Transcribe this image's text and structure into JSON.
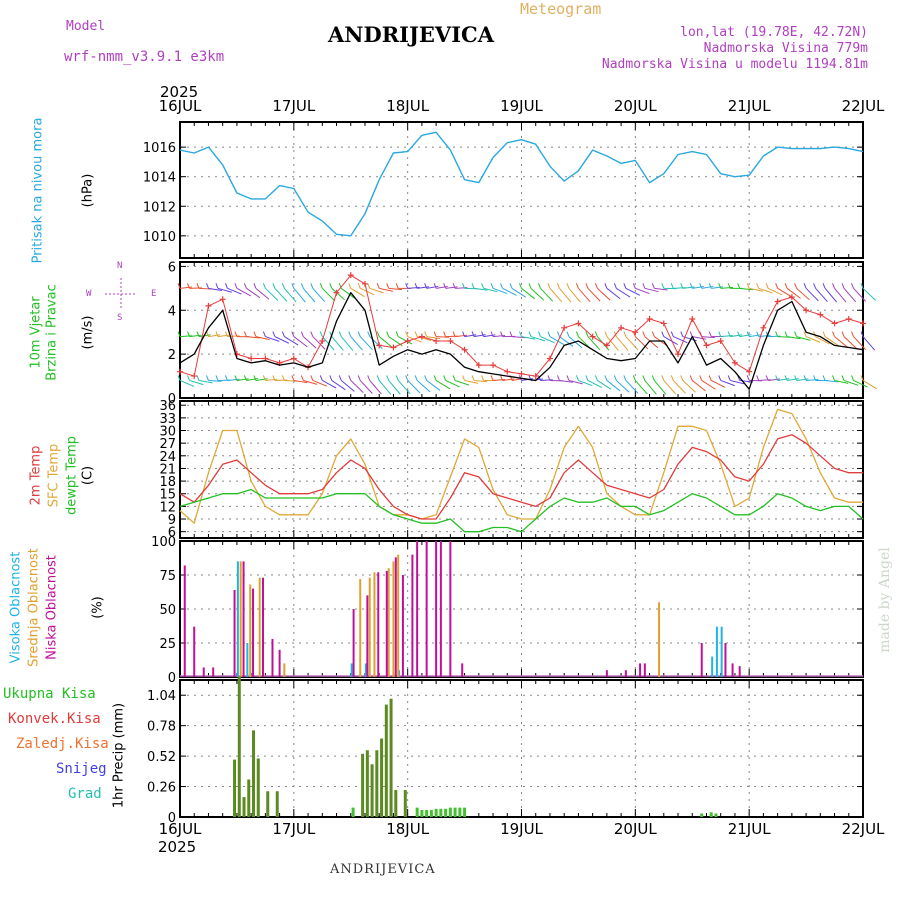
{
  "header": {
    "model_label": "Model",
    "model_name": "wrf-nmm_v3.9.1  e3km",
    "meteogram": "Meteogram",
    "station": "ANDRIJEVICA",
    "lonlat": "lon,lat (19.78E, 42.72N)",
    "elevation": "Nadmorska Visina 779m",
    "model_elevation": "Nadmorska Visina u modelu 1194.81m"
  },
  "footer": {
    "station": "ANDRIJEVICA",
    "credit": "made by Angel"
  },
  "time_axis": {
    "year": "2025",
    "ticks": [
      "16JUL",
      "17JUL",
      "18JUL",
      "19JUL",
      "20JUL",
      "21JUL",
      "22JUL"
    ]
  },
  "compass": {
    "n": "N",
    "s": "S",
    "e": "E",
    "w": "W"
  },
  "colors": {
    "pressure": "#29a8e0",
    "wind_speed": "#000000",
    "wind_gust": "#e83c3c",
    "t2m": "#e03c3c",
    "sfc": "#e0a838",
    "dewpt": "#22c022",
    "high_cloud": "#1fb3e6",
    "mid_cloud": "#e0a030",
    "low_cloud": "#c0109a",
    "precip": "#5a8a20",
    "grid": "#888888"
  },
  "chart_data": [
    {
      "type": "line",
      "id": "pressure",
      "ylabel": [
        "Pritisak na nivou mora",
        "(hPa)"
      ],
      "ylim": [
        1008.5,
        1017.7
      ],
      "yticks": [
        1010,
        1012,
        1014,
        1016
      ],
      "x_hours": [
        0,
        3,
        6,
        9,
        12,
        15,
        18,
        21,
        24,
        27,
        30,
        33,
        36,
        39,
        42,
        45,
        48,
        51,
        54,
        57,
        60,
        63,
        66,
        69,
        72,
        75,
        78,
        81,
        84,
        87,
        90,
        93,
        96,
        99,
        102,
        105,
        108,
        111,
        114,
        117,
        120,
        123,
        126,
        129,
        132,
        135,
        138,
        141,
        144
      ],
      "values": [
        1015.8,
        1015.6,
        1016.0,
        1014.8,
        1012.9,
        1012.5,
        1012.5,
        1013.4,
        1013.2,
        1011.6,
        1011.0,
        1010.1,
        1010.0,
        1011.5,
        1013.8,
        1015.6,
        1015.7,
        1016.8,
        1017.0,
        1015.8,
        1013.8,
        1013.6,
        1015.3,
        1016.3,
        1016.5,
        1016.2,
        1014.7,
        1013.7,
        1014.4,
        1015.8,
        1015.4,
        1014.9,
        1015.1,
        1013.6,
        1014.2,
        1015.5,
        1015.7,
        1015.5,
        1014.2,
        1014.0,
        1014.1,
        1015.4,
        1016.0,
        1015.9,
        1015.9,
        1015.9,
        1016.0,
        1015.9,
        1015.7
      ]
    },
    {
      "type": "line",
      "id": "wind",
      "ylabel": [
        "10m Vjetar",
        "Brzina i Pravac",
        "(m/s)"
      ],
      "ylim": [
        0,
        6.2
      ],
      "yticks": [
        0,
        2,
        4,
        6
      ],
      "x_hours": [
        0,
        3,
        6,
        9,
        12,
        15,
        18,
        21,
        24,
        27,
        30,
        33,
        36,
        39,
        42,
        45,
        48,
        51,
        54,
        57,
        60,
        63,
        66,
        69,
        72,
        75,
        78,
        81,
        84,
        87,
        90,
        93,
        96,
        99,
        102,
        105,
        108,
        111,
        114,
        117,
        120,
        123,
        126,
        129,
        132,
        135,
        138,
        141,
        144
      ],
      "series": [
        {
          "name": "speed",
          "values": [
            1.6,
            2.0,
            3.2,
            4.0,
            1.8,
            1.6,
            1.7,
            1.5,
            1.6,
            1.4,
            1.6,
            3.5,
            4.8,
            4.0,
            1.5,
            1.9,
            2.2,
            2.0,
            2.2,
            2.0,
            1.4,
            1.2,
            1.1,
            1.0,
            0.9,
            0.8,
            1.4,
            2.4,
            2.6,
            2.2,
            1.8,
            1.7,
            1.8,
            2.6,
            2.6,
            1.6,
            2.8,
            1.5,
            1.8,
            1.2,
            0.4,
            2.4,
            4.0,
            4.4,
            3.0,
            2.8,
            2.4,
            2.3,
            2.2
          ]
        },
        {
          "name": "gust",
          "values": [
            1.2,
            1.0,
            4.2,
            4.5,
            2.0,
            1.8,
            1.8,
            1.6,
            1.8,
            1.4,
            2.6,
            4.8,
            5.6,
            5.2,
            2.4,
            2.3,
            2.6,
            2.8,
            2.6,
            2.6,
            2.2,
            1.5,
            1.5,
            1.2,
            1.1,
            1.0,
            1.8,
            3.2,
            3.4,
            2.8,
            2.4,
            3.2,
            3.0,
            3.6,
            3.4,
            2.0,
            3.6,
            2.4,
            2.6,
            1.6,
            1.2,
            3.2,
            4.4,
            4.6,
            4.0,
            3.8,
            3.4,
            3.6,
            3.4
          ]
        }
      ],
      "barb_rows": [
        0.8,
        2.8,
        5.0
      ]
    },
    {
      "type": "line",
      "id": "temperature",
      "ylabel": [
        "2m Temp",
        "SFC Temp",
        "dewpt Temp",
        "(C)"
      ],
      "ylim": [
        4.5,
        37
      ],
      "yticks": [
        6,
        9,
        12,
        15,
        18,
        21,
        24,
        27,
        30,
        33,
        36
      ],
      "x_hours": [
        0,
        3,
        6,
        9,
        12,
        15,
        18,
        21,
        24,
        27,
        30,
        33,
        36,
        39,
        42,
        45,
        48,
        51,
        54,
        57,
        60,
        63,
        66,
        69,
        72,
        75,
        78,
        81,
        84,
        87,
        90,
        93,
        96,
        99,
        102,
        105,
        108,
        111,
        114,
        117,
        120,
        123,
        126,
        129,
        132,
        135,
        138,
        141,
        144
      ],
      "series": [
        {
          "name": "2m Temp",
          "values": [
            15,
            13,
            17,
            22,
            23,
            20,
            17,
            15,
            15,
            15,
            16,
            20,
            23,
            21,
            16,
            12,
            10,
            9,
            9,
            14,
            20,
            19,
            15,
            14,
            13,
            12,
            14,
            20,
            23,
            20,
            17,
            16,
            15,
            14,
            16,
            22,
            26,
            25,
            23,
            19,
            18,
            22,
            28,
            29,
            27,
            24,
            21,
            20,
            20
          ]
        },
        {
          "name": "SFC Temp",
          "values": [
            11,
            8,
            20,
            30,
            30,
            18,
            12,
            10,
            10,
            10,
            15,
            24,
            28,
            22,
            12,
            10,
            10,
            9,
            10,
            19,
            28,
            26,
            16,
            10,
            9,
            9,
            16,
            26,
            31,
            26,
            15,
            12,
            10,
            10,
            20,
            31,
            31,
            30,
            22,
            12,
            14,
            26,
            35,
            34,
            28,
            20,
            14,
            13,
            13
          ]
        },
        {
          "name": "dewpt Temp",
          "values": [
            12,
            13,
            14,
            15,
            15,
            16,
            14,
            14,
            14,
            14,
            14,
            15,
            15,
            15,
            12,
            10,
            9,
            8,
            8,
            9,
            6,
            6,
            7,
            7,
            6,
            9,
            12,
            14,
            13,
            13,
            14,
            12,
            12,
            10,
            11,
            13,
            15,
            14,
            12,
            10,
            10,
            12,
            15,
            14,
            12,
            11,
            12,
            12,
            9
          ]
        }
      ]
    },
    {
      "type": "bar",
      "id": "cloud",
      "ylabel": [
        "Visoka Oblacnost",
        "Srednja Oblacnost",
        "Niska Oblacnost",
        "(%)"
      ],
      "ylim": [
        0,
        100
      ],
      "yticks": [
        0,
        25,
        50,
        75,
        100
      ],
      "series": [
        {
          "name": "Visoka Oblacnost",
          "x_hours": [
            12.2,
            14.2,
            36.2,
            39.2,
            46.2,
            112.2,
            113.2,
            114.2
          ],
          "values": [
            85,
            25,
            10,
            10,
            5,
            15,
            37,
            37
          ]
        },
        {
          "name": "Srednja Oblacnost",
          "x_hours": [
            12.8,
            14.8,
            16.8,
            22.0,
            38.0,
            40.0,
            41.0,
            44.0,
            45.0,
            46.0,
            101.0
          ],
          "values": [
            85,
            68,
            73,
            10,
            72,
            73,
            77,
            80,
            85,
            90,
            55
          ]
        },
        {
          "name": "Niska Oblacnost",
          "x_hours": [
            1,
            3,
            5,
            7,
            11.5,
            13.4,
            15.4,
            17.5,
            19.5,
            21.0,
            36.6,
            39.5,
            41.8,
            43.6,
            45.5,
            47.0,
            49.0,
            50.0,
            52.0,
            54.0,
            55.0,
            57.0,
            59.5,
            90.0,
            94.0,
            97.0,
            98.0,
            110.0,
            115.0,
            116.5,
            118.0
          ],
          "values": [
            82,
            37,
            7,
            7,
            64,
            85,
            65,
            73,
            28,
            20,
            50,
            60,
            77,
            78,
            88,
            75,
            90,
            100,
            100,
            100,
            100,
            100,
            10,
            5,
            5,
            10,
            10,
            25,
            25,
            10,
            8
          ]
        }
      ]
    },
    {
      "type": "bar",
      "id": "precip",
      "ylabel": [
        "Ukupna Kisa",
        "Konvek.Kisa",
        "Zaledj.Kisa",
        "Snijeg",
        "Grad",
        "1hr Precip (mm)"
      ],
      "ylim": [
        0,
        1.17
      ],
      "yticks": [
        0,
        0.26,
        0.52,
        0.78,
        1.04
      ],
      "x_hours": [
        11.5,
        12.5,
        13.5,
        14.5,
        15.5,
        16.5,
        18.5,
        20.5,
        36.5,
        38.5,
        39.5,
        40.5,
        41.5,
        42.5,
        43.5,
        44.5,
        45.5,
        47.5,
        50,
        51,
        52,
        53,
        54,
        55,
        56,
        57,
        58,
        59,
        60,
        110,
        112,
        113
      ],
      "values": [
        0.49,
        1.2,
        0.17,
        0.32,
        0.74,
        0.5,
        0.22,
        0.22,
        0.08,
        0.54,
        0.57,
        0.45,
        0.57,
        0.67,
        0.96,
        1.01,
        0.23,
        0.23,
        0.08,
        0.06,
        0.06,
        0.06,
        0.07,
        0.07,
        0.07,
        0.08,
        0.08,
        0.08,
        0.08,
        0.03,
        0.04,
        0.03
      ]
    }
  ]
}
